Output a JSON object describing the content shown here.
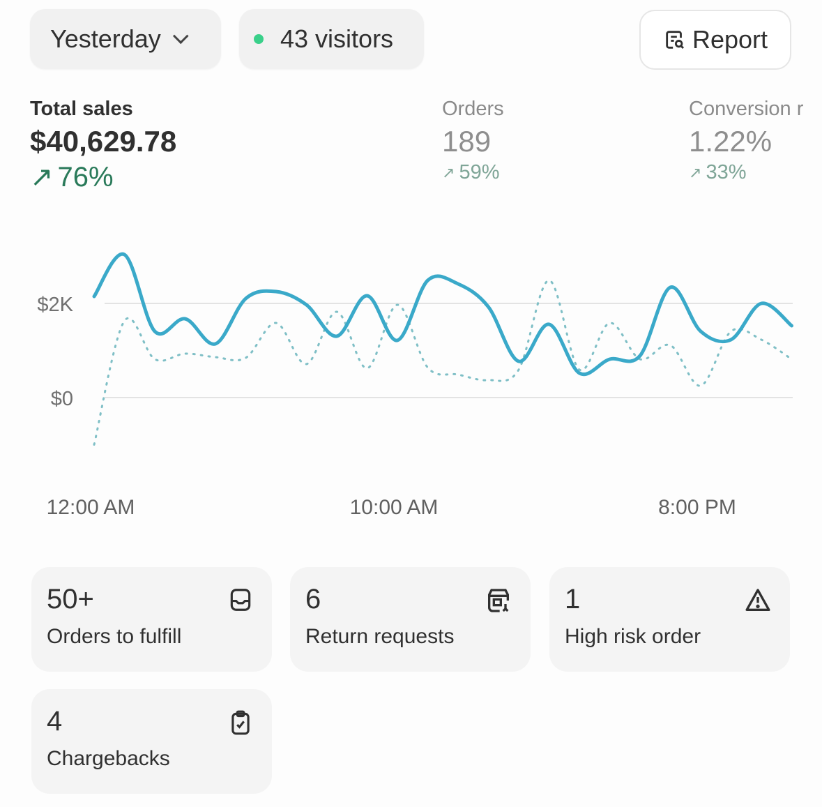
{
  "header": {
    "date_range": "Yesterday",
    "visitors": "43 visitors",
    "report_label": "Report",
    "live_dot_color": "#3ad08a"
  },
  "metrics": [
    {
      "label": "Total sales",
      "value": "$40,629.78",
      "delta": "76%",
      "trend": "up"
    },
    {
      "label": "Orders",
      "value": "189",
      "delta": "59%",
      "trend": "up"
    },
    {
      "label": "Conversion r",
      "value": "1.22%",
      "delta": "33%",
      "trend": "up"
    }
  ],
  "chart_data": {
    "type": "line",
    "x": [
      "12:00 AM",
      "1:00 AM",
      "2:00 AM",
      "3:00 AM",
      "4:00 AM",
      "5:00 AM",
      "6:00 AM",
      "7:00 AM",
      "8:00 AM",
      "9:00 AM",
      "10:00 AM",
      "11:00 AM",
      "12:00 PM",
      "1:00 PM",
      "2:00 PM",
      "3:00 PM",
      "4:00 PM",
      "5:00 PM",
      "6:00 PM",
      "7:00 PM",
      "8:00 PM",
      "9:00 PM",
      "10:00 PM",
      "11:00 PM"
    ],
    "x_tick_labels": [
      "12:00 AM",
      "10:00 AM",
      "8:00 PM"
    ],
    "y_tick_labels": [
      "$2K",
      "$0"
    ],
    "y_ticks": [
      2000,
      0
    ],
    "series": [
      {
        "style": "solid",
        "color": "#3aa9c9",
        "values": [
          2148,
          3037,
          1407,
          1674,
          1141,
          2104,
          2252,
          1970,
          1304,
          2163,
          1215,
          2489,
          2415,
          1926,
          770,
          1556,
          519,
          815,
          889,
          2341,
          1407,
          1230,
          2000,
          1526
        ]
      },
      {
        "style": "dotted",
        "color": "#7fbfc6",
        "values": [
          -1000,
          1630,
          815,
          933,
          859,
          844,
          1585,
          711,
          1822,
          622,
          1970,
          637,
          489,
          370,
          593,
          2489,
          593,
          1585,
          815,
          1111,
          252,
          1407,
          1230,
          815
        ]
      }
    ],
    "grid": true
  },
  "cards": [
    {
      "number": "50+",
      "label": "Orders to fulfill",
      "icon": "inbox-icon"
    },
    {
      "number": "6",
      "label": "Return requests",
      "icon": "return-box-icon"
    },
    {
      "number": "1",
      "label": "High risk order",
      "icon": "alert-triangle-icon"
    },
    {
      "number": "4",
      "label": "Chargebacks",
      "icon": "clipboard-check-icon"
    }
  ]
}
